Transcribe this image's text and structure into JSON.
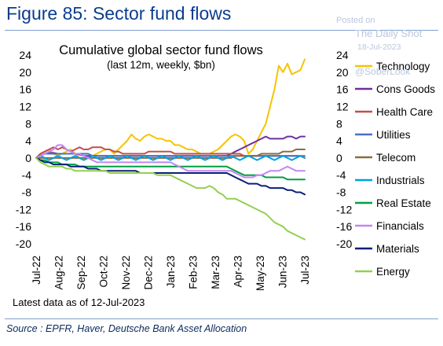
{
  "figure_title": "Figure 85: Sector fund flows",
  "watermark": {
    "posted": "Posted on",
    "site": "The Daily Shot",
    "date": "18-Jul-2023",
    "handle": "@SoberLook"
  },
  "note": "Latest data as of 12-Jul-2023",
  "source": "Source : EPFR, Haver, Deutsche Bank Asset Allocation",
  "chart_data": {
    "type": "line",
    "title": "Cumulative global sector fund flows",
    "subtitle": "(last 12m, weekly, $bn)",
    "x_ticks": [
      "Jul-22",
      "Aug-22",
      "Sep-22",
      "Oct-22",
      "Nov-22",
      "Dec-22",
      "Jan-23",
      "Feb-23",
      "Mar-23",
      "Apr-23",
      "May-23",
      "Jun-23",
      "Jul-23"
    ],
    "ylim": [
      -20,
      24
    ],
    "y_ticks": [
      24,
      20,
      16,
      12,
      8,
      4,
      0,
      -4,
      -8,
      -12,
      -16,
      -20
    ],
    "grid": false,
    "legend_position": "right",
    "series": [
      {
        "name": "Technology",
        "color": "#f5c400",
        "values": [
          0,
          1,
          1.5,
          2,
          1,
          0.5,
          1,
          1.5,
          2,
          1,
          0,
          -0.5,
          0,
          0.5,
          1,
          1.5,
          2,
          2,
          1,
          2,
          3,
          4,
          5.5,
          4.5,
          4,
          5,
          5.5,
          5,
          4.5,
          4.5,
          4,
          4,
          3,
          3,
          2.5,
          2,
          2,
          1.5,
          1,
          1,
          1,
          1.5,
          2,
          3,
          4,
          5,
          5.5,
          5,
          4,
          1,
          2,
          4,
          6,
          8,
          12,
          16,
          21.5,
          20,
          22,
          19.5,
          20,
          20.5,
          23
        ]
      },
      {
        "name": "Cons Goods",
        "color": "#7030a0",
        "values": [
          0,
          0.5,
          1,
          1.2,
          1.2,
          1,
          1,
          1,
          1,
          1,
          0.8,
          0.5,
          0.5,
          0.5,
          0.5,
          0.5,
          0.5,
          0.5,
          0.5,
          0.5,
          0.5,
          0.5,
          0.5,
          0.5,
          0.5,
          0.5,
          0.5,
          0.5,
          0.5,
          0.5,
          0.5,
          0.5,
          0.5,
          0.5,
          0.5,
          0.5,
          0.5,
          0.5,
          0.5,
          0.5,
          0.5,
          0.5,
          0.5,
          0.5,
          0.5,
          1,
          1.5,
          2,
          2.5,
          3,
          3.5,
          4,
          4.5,
          5,
          4.5,
          4.5,
          4.5,
          4.5,
          5,
          5,
          4.5,
          5,
          5
        ]
      },
      {
        "name": "Health Care",
        "color": "#c0504d",
        "values": [
          0,
          1,
          1.5,
          2,
          2.5,
          2,
          2.5,
          2,
          1.5,
          2,
          2.5,
          2,
          2,
          2.5,
          2.5,
          2.5,
          2,
          2,
          1.5,
          1.5,
          1,
          1,
          1,
          1,
          1,
          1,
          1.5,
          1.5,
          1.5,
          1.5,
          1.5,
          1.5,
          1,
          1,
          1,
          1,
          1,
          1,
          1,
          1,
          1,
          1,
          1,
          1,
          1,
          1,
          1,
          1,
          0.5,
          0.5,
          0.5,
          0.5,
          0.5,
          0.5,
          0.5,
          0.5,
          0.5,
          0.5,
          0.5,
          0.5,
          0.5,
          0.5,
          0.5
        ]
      },
      {
        "name": "Utilities",
        "color": "#4472c4",
        "values": [
          0,
          0.5,
          1,
          1,
          1,
          1,
          1,
          1,
          1,
          1,
          1,
          1,
          1,
          0.5,
          0.5,
          0.5,
          0.5,
          0.5,
          0.5,
          0.5,
          0.5,
          0.5,
          0.5,
          0.5,
          0.5,
          0.5,
          0.5,
          0.5,
          0.5,
          0.5,
          0.5,
          0.5,
          0.5,
          0.5,
          0.5,
          0.5,
          0.5,
          0.5,
          0.5,
          0.5,
          0.5,
          0.5,
          0.5,
          0.5,
          0.5,
          0.5,
          0.5,
          0.5,
          0.5,
          0.5,
          0.5,
          0.5,
          0.5,
          0.5,
          0.5,
          0.5,
          0.5,
          0.5,
          0.5,
          0.5,
          0.5,
          0.5,
          0
        ]
      },
      {
        "name": "Telecom",
        "color": "#8c6d3f",
        "values": [
          0,
          0,
          0,
          0,
          0,
          0,
          0,
          0,
          0,
          0,
          0,
          0,
          0,
          0,
          0,
          0,
          0,
          0,
          0,
          0,
          0,
          0,
          0,
          0,
          0,
          0,
          0,
          0,
          0,
          0,
          0,
          0,
          0,
          0,
          0,
          0,
          0,
          0,
          0,
          0,
          0,
          0,
          0,
          0,
          0,
          0,
          0.5,
          0.5,
          0.5,
          0.5,
          0.5,
          0.5,
          1,
          1,
          1,
          1,
          1,
          1.5,
          1.5,
          1.5,
          2,
          2,
          2
        ]
      },
      {
        "name": "Industrials",
        "color": "#00a0e0",
        "values": [
          0,
          0.5,
          0,
          -0.5,
          0,
          0.5,
          0,
          -0.5,
          0,
          0.5,
          0,
          -0.5,
          0,
          0.5,
          0,
          -0.5,
          0,
          0.5,
          0,
          -0.5,
          0,
          0.5,
          0,
          -0.5,
          0,
          0.5,
          0,
          -0.5,
          0,
          0.5,
          0,
          -0.5,
          0,
          0.5,
          0,
          -0.5,
          0,
          0.5,
          0,
          -0.5,
          0,
          0.5,
          0,
          -0.5,
          0,
          0.5,
          0,
          -0.5,
          0,
          0.5,
          0,
          -0.5,
          0,
          0.5,
          0,
          -0.5,
          0,
          0.5,
          0,
          -0.5,
          0,
          0.5,
          0
        ]
      },
      {
        "name": "Real Estate",
        "color": "#00a040",
        "values": [
          0,
          -0.5,
          -0.5,
          -1,
          -1,
          -1,
          -1.5,
          -1.5,
          -1.5,
          -1.5,
          -2,
          -2,
          -2,
          -2,
          -2,
          -2,
          -2,
          -2,
          -2,
          -2,
          -2,
          -2,
          -2,
          -2,
          -2,
          -2,
          -2,
          -2,
          -2,
          -2,
          -2,
          -2,
          -2,
          -2,
          -2,
          -2,
          -2,
          -2,
          -2,
          -2,
          -2,
          -2,
          -2,
          -2,
          -2,
          -2.5,
          -3,
          -3.5,
          -4,
          -4,
          -4,
          -4,
          -4,
          -4.5,
          -4.5,
          -4.5,
          -4.5,
          -4.5,
          -5,
          -5,
          -5,
          -5,
          -5
        ]
      },
      {
        "name": "Financials",
        "color": "#c586f0",
        "values": [
          0,
          0.5,
          1,
          1.5,
          2,
          3,
          3,
          2,
          1.5,
          1,
          1,
          0.5,
          0,
          -0.5,
          -1,
          -1,
          -1,
          -1,
          -1,
          -1,
          -1,
          -1,
          -1,
          -1,
          -1,
          -1,
          -1,
          -1,
          -1,
          -1,
          -1,
          -1,
          -1.5,
          -2,
          -2.5,
          -3,
          -3,
          -3,
          -3,
          -3,
          -3,
          -3,
          -3,
          -3,
          -3,
          -3,
          -3.5,
          -4,
          -4.5,
          -4.5,
          -4.5,
          -4,
          -4,
          -3.5,
          -3,
          -3,
          -3,
          -2.5,
          -2,
          -2.5,
          -3,
          -3,
          -3
        ]
      },
      {
        "name": "Materials",
        "color": "#0b1f7a",
        "values": [
          0,
          -0.5,
          -1,
          -1,
          -1.5,
          -1.5,
          -1.5,
          -1.5,
          -2,
          -2,
          -2,
          -2,
          -2.5,
          -2.5,
          -2.5,
          -3,
          -3,
          -3,
          -3,
          -3,
          -3,
          -3,
          -3,
          -3,
          -3.5,
          -3.5,
          -3.5,
          -3.5,
          -3.5,
          -3.5,
          -3.5,
          -3.5,
          -3.5,
          -3.5,
          -3.5,
          -3.5,
          -3.5,
          -3.5,
          -3.5,
          -3.5,
          -3.5,
          -3.5,
          -3.5,
          -3.5,
          -3.5,
          -4,
          -4.5,
          -5,
          -5.5,
          -6,
          -6,
          -6,
          -6.5,
          -6.5,
          -7,
          -7,
          -7,
          -7,
          -7.5,
          -7.5,
          -8,
          -8,
          -8.5
        ]
      },
      {
        "name": "Energy",
        "color": "#92d050",
        "values": [
          0,
          -1,
          -1.5,
          -2,
          -2,
          -2,
          -2,
          -2.5,
          -2.5,
          -3,
          -3,
          -3,
          -3,
          -3,
          -3,
          -3,
          -3,
          -3.5,
          -3.5,
          -3.5,
          -3.5,
          -3.5,
          -3.5,
          -3.5,
          -3.5,
          -3.5,
          -3.5,
          -3.5,
          -4,
          -4,
          -4,
          -4,
          -4.5,
          -5,
          -5.5,
          -6,
          -6.5,
          -7,
          -7,
          -7,
          -6.5,
          -7,
          -8,
          -8.5,
          -9.5,
          -9.5,
          -9.5,
          -10,
          -10.5,
          -11,
          -11.5,
          -12,
          -12.5,
          -13,
          -14,
          -15,
          -15.5,
          -16,
          -17,
          -17.5,
          -18,
          -18.5,
          -19
        ]
      }
    ]
  }
}
